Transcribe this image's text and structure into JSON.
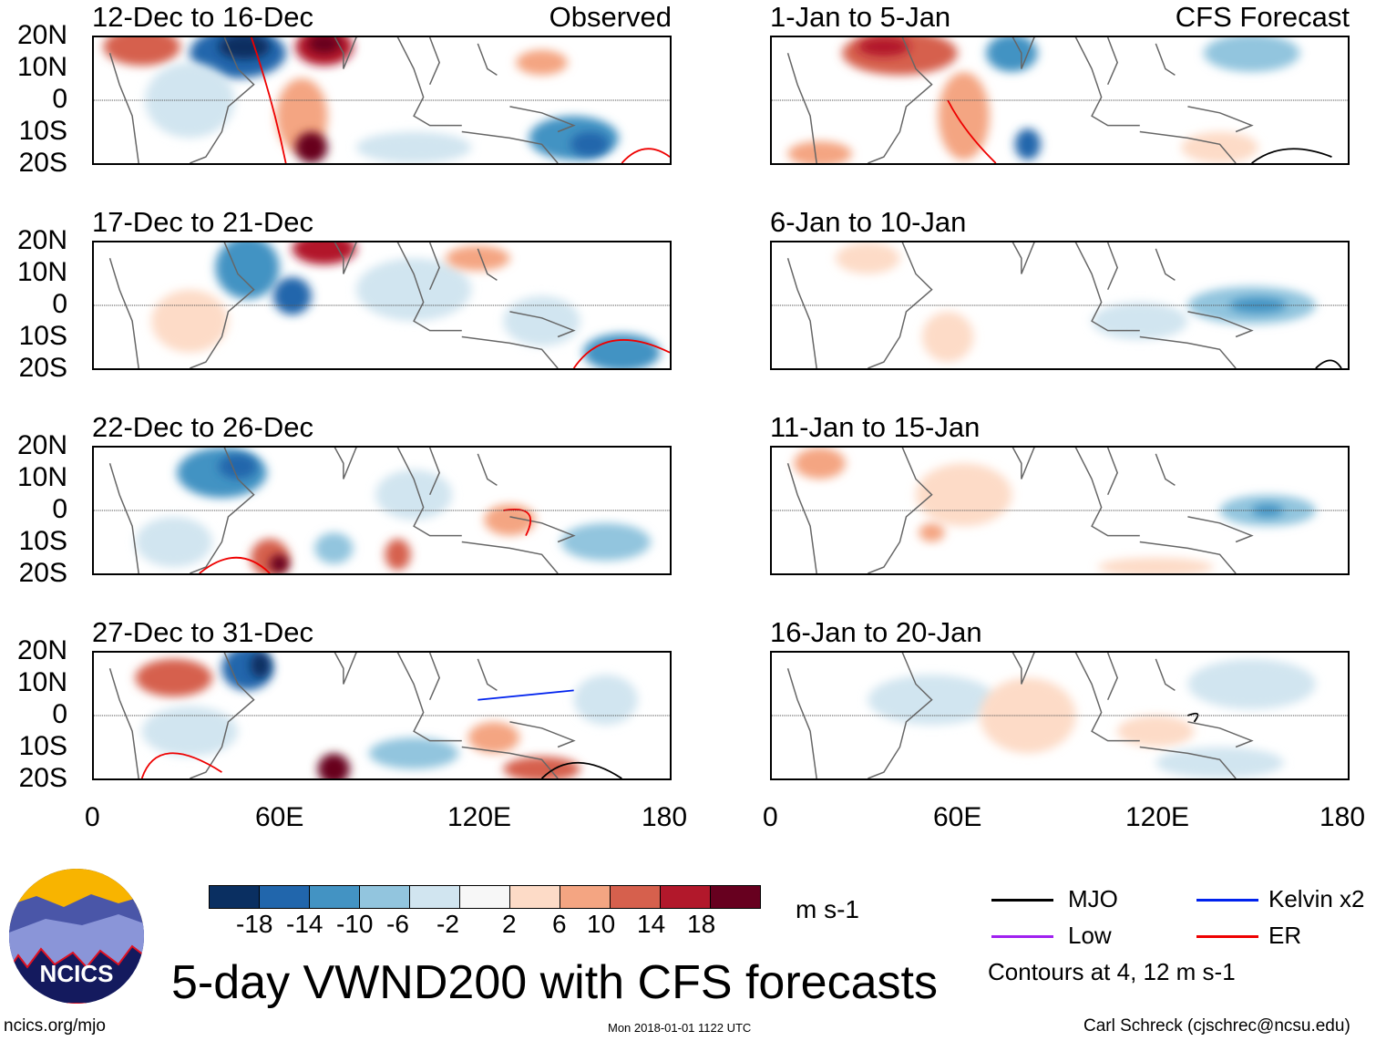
{
  "panels_left": [
    {
      "title": "12-Dec to 16-Dec",
      "tag": "Observed"
    },
    {
      "title": "17-Dec to 21-Dec",
      "tag": ""
    },
    {
      "title": "22-Dec to 26-Dec",
      "tag": ""
    },
    {
      "title": "27-Dec to 31-Dec",
      "tag": ""
    }
  ],
  "panels_right": [
    {
      "title": "1-Jan to 5-Jan",
      "tag": "CFS Forecast"
    },
    {
      "title": "6-Jan to 10-Jan",
      "tag": ""
    },
    {
      "title": "11-Jan to 15-Jan",
      "tag": ""
    },
    {
      "title": "16-Jan to 20-Jan",
      "tag": ""
    }
  ],
  "lat_labels": [
    "20N",
    "10N",
    "0",
    "10S",
    "20S"
  ],
  "lon_labels": [
    "0",
    "60E",
    "120E",
    "180"
  ],
  "colorbar": {
    "colors": [
      "#0a2f61",
      "#2166ac",
      "#4393c3",
      "#92c5de",
      "#d1e5f0",
      "#f7f7f7",
      "#fddbc7",
      "#f4a582",
      "#d6604d",
      "#b2182b",
      "#67001f"
    ],
    "labels": [
      "-18",
      "-14",
      "-10",
      "-6",
      "-2",
      "2",
      "6",
      "10",
      "14",
      "18"
    ],
    "units": "m s-1"
  },
  "legend": {
    "items": [
      {
        "label": "MJO",
        "color": "#000000"
      },
      {
        "label": "Kelvin x2",
        "color": "#0022ee"
      },
      {
        "label": "Low",
        "color": "#a020f0"
      },
      {
        "label": "ER",
        "color": "#ee0000"
      }
    ],
    "note": "Contours at 4, 12 m s-1"
  },
  "logo_text": "NCICS",
  "title": "5-day VWND200 with CFS forecasts",
  "footer": {
    "left": "ncics.org/mjo",
    "center": "Mon 2018-01-01 1122 UTC",
    "right": "Carl Schreck (cjschrec@ncsu.edu)"
  }
}
